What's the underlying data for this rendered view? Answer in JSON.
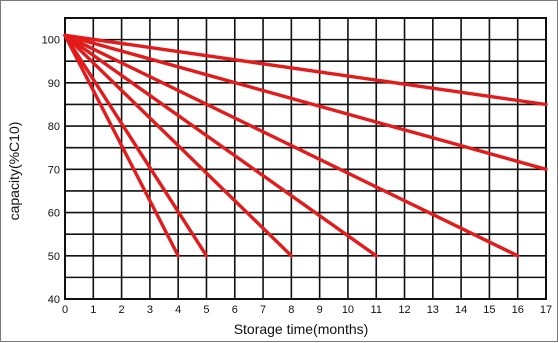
{
  "chart_data": {
    "type": "line",
    "xlabel": "Storage time(months)",
    "ylabel": "capacity(%C10)",
    "xlim": [
      0,
      17
    ],
    "ylim": [
      40,
      105
    ],
    "x_ticks": [
      "0",
      "1",
      "2",
      "3",
      "4",
      "5",
      "6",
      "7",
      "8",
      "9",
      "10",
      "11",
      "12",
      "13",
      "14",
      "15",
      "16",
      "17"
    ],
    "y_ticks": [
      "40",
      "50",
      "60",
      "70",
      "80",
      "90",
      "100"
    ],
    "grid": true,
    "line_color": "#e31b1b",
    "series": [
      {
        "points": [
          [
            0,
            101
          ],
          [
            17,
            85
          ]
        ]
      },
      {
        "points": [
          [
            0,
            101
          ],
          [
            17,
            70
          ]
        ]
      },
      {
        "points": [
          [
            0,
            101
          ],
          [
            16,
            50
          ]
        ]
      },
      {
        "points": [
          [
            0,
            101
          ],
          [
            11,
            50
          ]
        ]
      },
      {
        "points": [
          [
            0,
            101
          ],
          [
            8,
            50
          ]
        ]
      },
      {
        "points": [
          [
            0,
            101
          ],
          [
            5,
            50
          ]
        ]
      },
      {
        "points": [
          [
            0,
            101
          ],
          [
            4,
            50
          ]
        ]
      }
    ]
  }
}
